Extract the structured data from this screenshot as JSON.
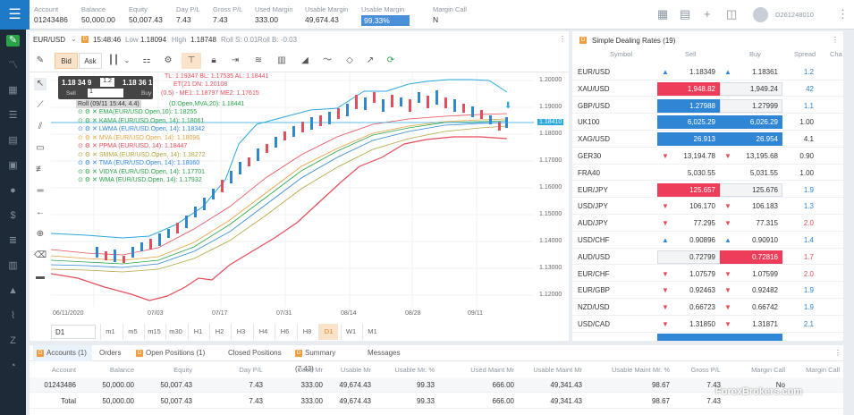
{
  "topbar": {
    "stats": [
      {
        "label": "Account",
        "value": "01243486"
      },
      {
        "label": "Balance",
        "value": "50,000.00"
      },
      {
        "label": "Equity",
        "value": "50,007.43"
      },
      {
        "label": "Day P/L",
        "value": "7.43"
      },
      {
        "label": "Gross P/L",
        "value": "7.43"
      },
      {
        "label": "Used Margin",
        "value": "333.00"
      },
      {
        "label": "Usable Margin",
        "value": "49,674.43"
      },
      {
        "label": "Usable Margin",
        "value": "99.33%"
      },
      {
        "label": "Margin Call",
        "value": "N"
      }
    ],
    "account_id": "D261248010"
  },
  "chart": {
    "symbol": "EUR/USD",
    "time": "15:48:46",
    "low_label": "Low",
    "low": "1.18094",
    "high_label": "High",
    "high": "1.18748",
    "roll_s": "Roll S: 0.01",
    "roll_b": "Roll B: -0.03",
    "bid_label": "Bid",
    "ask_label": "Ask",
    "sell_price": "1.18 34 9",
    "buy_price": "1.18 36 1",
    "spread": "1.2",
    "qty": "1",
    "sell_label": "Sell",
    "buy_label": "Buy",
    "current_price": "1.18410",
    "legend": [
      {
        "text": "TL: 1.19347 BL: 1.17535 AL: 1.18441",
        "color": "#e74c5a"
      },
      {
        "text": "ET(21 DN: 1.20108",
        "color": "#e74c5a"
      },
      {
        "text": "(0.5) - ME1: 1.18797 ME2: 1.17615",
        "color": "#e74c5a"
      },
      {
        "text": "Roll (09/11 15:44, 4.4)",
        "color": "#333"
      },
      {
        "text": "(D.Open,MVA,20): 1.18441",
        "color": "#2aa34a"
      },
      {
        "text": "EMA(EUR/USD.Open,10): 1.18255",
        "color": "#2aa34a"
      },
      {
        "text": "KAMA (EUR/USD.Open, 14): 1.18061",
        "color": "#2aa34a"
      },
      {
        "text": "LWMA (EUR/USD.Open, 14): 1.18342",
        "color": "#2f86d4"
      },
      {
        "text": "MVA (EUR/USD.Open, 14): 1.18096",
        "color": "#e6a23c"
      },
      {
        "text": "PPMA (EUR/USD, 14): 1.18447",
        "color": "#e74c5a"
      },
      {
        "text": "SMMA (EUR/USD.Open, 14): 1.18272",
        "color": "#b5a642"
      },
      {
        "text": "TMA (EUR/USD.Open, 14): 1.18060",
        "color": "#2f86d4"
      },
      {
        "text": "VIDYA (EUR/USD.Open, 14): 1.17701",
        "color": "#2aa34a"
      },
      {
        "text": "WMA (EUR/USD.Open, 14): 1.17932",
        "color": "#2aa34a"
      }
    ],
    "y_labels": [
      "1.20000",
      "1.19000",
      "1.18000",
      "1.17000",
      "1.16000",
      "1.15000",
      "1.14000",
      "1.13000",
      "1.12000"
    ],
    "x_labels": [
      "06/11/2020",
      "07/03",
      "07/17",
      "07/31",
      "08/14",
      "08/28",
      "09/11"
    ],
    "timeframes": [
      "D1",
      "m1",
      "m5",
      "m15",
      "m30",
      "H1",
      "H2",
      "H3",
      "H4",
      "H6",
      "H8",
      "D1",
      "W1",
      "M1"
    ]
  },
  "rates": {
    "title": "Simple Dealing Rates (19)",
    "headers": [
      "Symbol",
      "Sell",
      "Buy",
      "Spread",
      "Cha"
    ],
    "rows": [
      {
        "sym": "EUR/USD",
        "sell": "1.18349",
        "buy": "1.18361",
        "spread": "1.2",
        "dir": "up",
        "style": ""
      },
      {
        "sym": "XAU/USD",
        "sell": "1,948.82",
        "buy": "1,949.24",
        "spread": "42",
        "dir": "",
        "style": "red"
      },
      {
        "sym": "GBP/USD",
        "sell": "1.27988",
        "buy": "1.27999",
        "spread": "1.1",
        "dir": "",
        "style": "blue"
      },
      {
        "sym": "UK100",
        "sell": "6,025.29",
        "buy": "6,026.29",
        "spread": "1.00",
        "dir": "",
        "style": "blueboth"
      },
      {
        "sym": "XAG/USD",
        "sell": "26.913",
        "buy": "26.954",
        "spread": "4.1",
        "dir": "",
        "style": "blueboth"
      },
      {
        "sym": "GER30",
        "sell": "13,194.78",
        "buy": "13,195.68",
        "spread": "0.90",
        "dir": "down",
        "style": ""
      },
      {
        "sym": "FRA40",
        "sell": "5,030.55",
        "buy": "5,031.55",
        "spread": "1.00",
        "dir": "",
        "style": ""
      },
      {
        "sym": "EUR/JPY",
        "sell": "125.657",
        "buy": "125.676",
        "spread": "1.9",
        "dir": "",
        "style": "red"
      },
      {
        "sym": "USD/JPY",
        "sell": "106.170",
        "buy": "106.183",
        "spread": "1.3",
        "dir": "down",
        "style": ""
      },
      {
        "sym": "AUD/JPY",
        "sell": "77.295",
        "buy": "77.315",
        "spread": "2.0",
        "dir": "down",
        "style": ""
      },
      {
        "sym": "USD/CHF",
        "sell": "0.90896",
        "buy": "0.90910",
        "spread": "1.4",
        "dir": "up",
        "style": ""
      },
      {
        "sym": "AUD/USD",
        "sell": "0.72799",
        "buy": "0.72816",
        "spread": "1.7",
        "dir": "",
        "style": "redbuy"
      },
      {
        "sym": "EUR/CHF",
        "sell": "1.07579",
        "buy": "1.07599",
        "spread": "2.0",
        "dir": "down",
        "style": ""
      },
      {
        "sym": "EUR/GBP",
        "sell": "0.92463",
        "buy": "0.92482",
        "spread": "1.9",
        "dir": "down",
        "style": ""
      },
      {
        "sym": "NZD/USD",
        "sell": "0.66723",
        "buy": "0.66742",
        "spread": "1.9",
        "dir": "down",
        "style": ""
      },
      {
        "sym": "USD/CAD",
        "sell": "1.31850",
        "buy": "1.31871",
        "spread": "2.1",
        "dir": "down",
        "style": ""
      }
    ]
  },
  "bottom": {
    "tabs": [
      "Accounts (1)",
      "Orders",
      "Open Positions (1)",
      "Closed Positions",
      "Summary (7.43)",
      "Messages"
    ],
    "headers": [
      "Account",
      "Balance",
      "Equity",
      "Day P/L",
      "Used Mr",
      "Usable Mr",
      "Usable Mr. %",
      "Used Maint Mr",
      "Usable Maint Mr",
      "Usable Maint Mr. %",
      "Gross P/L",
      "Margin Call",
      "Margin Call"
    ],
    "rows": [
      [
        "01243486",
        "50,000.00",
        "50,007.43",
        "7.43",
        "333.00",
        "49,674.43",
        "99.33",
        "666.00",
        "49,341.43",
        "98.67",
        "7.43",
        "No",
        ""
      ],
      [
        "Total",
        "50,000.00",
        "50,007.43",
        "7.43",
        "333.00",
        "49,674.43",
        "99.33",
        "666.00",
        "49,341.43",
        "98.67",
        "7.43",
        "",
        ""
      ]
    ]
  },
  "watermark": "ForexBrokers.com"
}
